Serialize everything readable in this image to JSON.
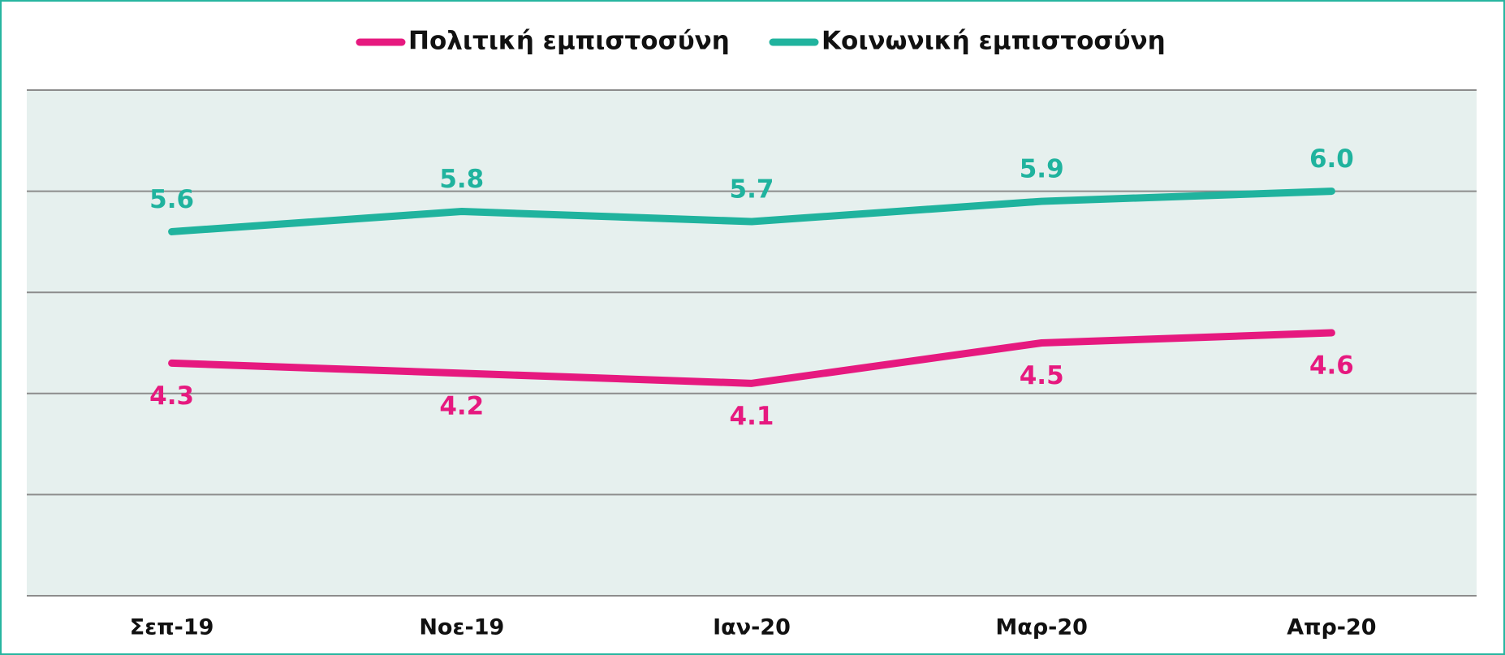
{
  "chart_data": {
    "type": "line",
    "categories": [
      "Σεπ-19",
      "Νοε-19",
      "Ιαν-20",
      "Μαρ-20",
      "Απρ-20"
    ],
    "series": [
      {
        "name": "Πολιτική εμπιστοσύνη",
        "color": "#e6197f",
        "values": [
          4.3,
          4.2,
          4.1,
          4.5,
          4.6
        ],
        "value_labels": [
          "4.3",
          "4.2",
          "4.1",
          "4.5",
          "4.6"
        ],
        "label_position": "below"
      },
      {
        "name": "Κοινωνική εμπιστοσύνη",
        "color": "#20b39e",
        "values": [
          5.6,
          5.8,
          5.7,
          5.9,
          6.0
        ],
        "value_labels": [
          "5.6",
          "5.8",
          "5.7",
          "5.9",
          "6.0"
        ],
        "label_position": "above"
      }
    ],
    "ylim": [
      2,
      7
    ],
    "yticks": [
      2,
      3,
      4,
      5,
      6,
      7
    ],
    "grid": true,
    "legend": "top"
  }
}
